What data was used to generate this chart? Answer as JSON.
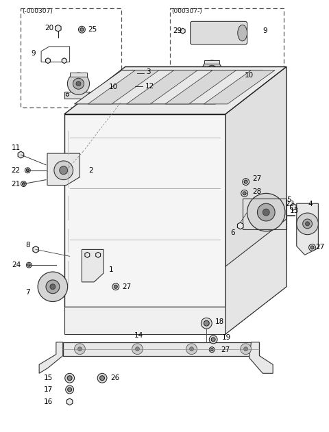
{
  "bg_color": "#ffffff",
  "lc": "#1a1a1a",
  "box1_label": "(-000307)",
  "box2_label": "(000307-)",
  "figsize": [
    4.8,
    6.31
  ],
  "dpi": 100
}
